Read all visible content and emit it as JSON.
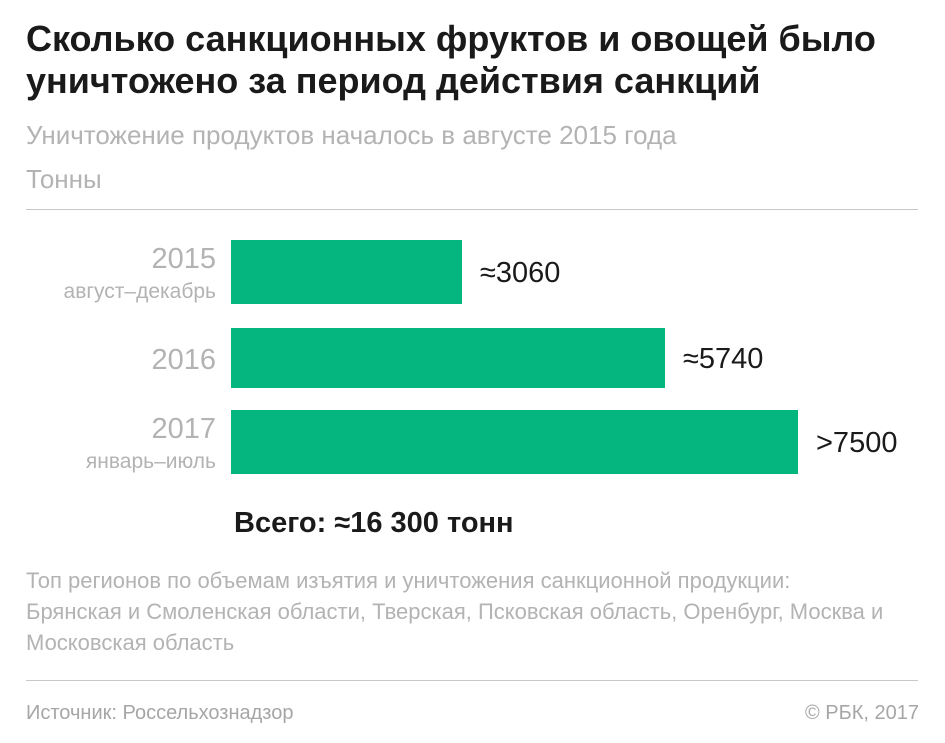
{
  "title": "Сколько санкционных фруктов и овощей было уничтожено за период действия санкций",
  "subtitle": "Уничтожение продуктов началось в августе 2015 года",
  "units": "Тонны",
  "total": "Всего: ≈16 300 тонн",
  "note": "Топ регионов по объемам изъятия и уничтожения санкционной продукции: Брянская и Смоленская области, Тверская, Псковская область, Оренбург, Москва и Московская область",
  "source": "Источник: Россельхознадзор",
  "credit": "© РБК, 2017",
  "colors": {
    "bar": "#05b67e",
    "title": "#1a1a1a",
    "muted": "#b3b3b3"
  },
  "chart_data": {
    "type": "bar",
    "orientation": "horizontal",
    "categories": [
      "2015",
      "2016",
      "2017"
    ],
    "category_sublabels": [
      "август–декабрь",
      "",
      "январь–июль"
    ],
    "values": [
      3060,
      5740,
      7500
    ],
    "value_labels": [
      "≈3060",
      "≈5740",
      ">7500"
    ],
    "xlim": [
      0,
      7500
    ],
    "grid": false,
    "legend": "none"
  }
}
